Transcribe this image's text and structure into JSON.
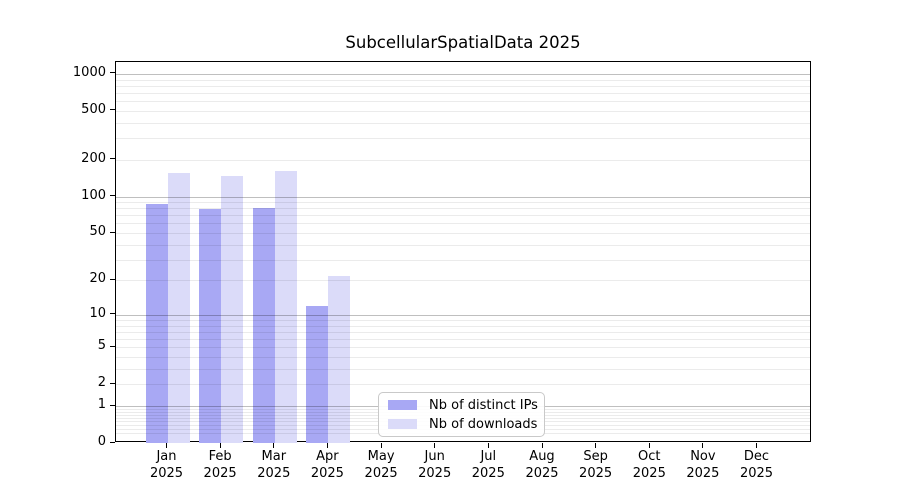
{
  "chart_data": {
    "type": "bar",
    "title": "SubcellularSpatialData 2025",
    "categories": [
      "Jan 2025",
      "Feb 2025",
      "Mar 2025",
      "Apr 2025",
      "May 2025",
      "Jun 2025",
      "Jul 2025",
      "Aug 2025",
      "Sep 2025",
      "Oct 2025",
      "Nov 2025",
      "Dec 2025"
    ],
    "x_tick_line1": [
      "Jan",
      "Feb",
      "Mar",
      "Apr",
      "May",
      "Jun",
      "Jul",
      "Aug",
      "Sep",
      "Oct",
      "Nov",
      "Dec"
    ],
    "x_tick_line2": "2025",
    "series": [
      {
        "name": "Nb of distinct IPs",
        "color": "#a8a8f4",
        "values": [
          87,
          79,
          80,
          12,
          0,
          0,
          0,
          0,
          0,
          0,
          0,
          0
        ]
      },
      {
        "name": "Nb of downloads",
        "color": "#dbdbf9",
        "values": [
          155,
          146,
          162,
          22,
          0,
          0,
          0,
          0,
          0,
          0,
          0,
          0
        ]
      }
    ],
    "y_scale": "log1p",
    "y_ticks": [
      0,
      1,
      2,
      5,
      10,
      20,
      50,
      100,
      200,
      500,
      1000
    ],
    "y_gridlines_major": [
      1,
      10,
      100,
      1000
    ],
    "y_gridlines_minor": [
      0.2,
      0.3,
      0.4,
      0.5,
      0.6,
      0.7,
      0.8,
      0.9,
      2,
      3,
      4,
      5,
      6,
      7,
      8,
      9,
      20,
      30,
      40,
      50,
      60,
      70,
      80,
      90,
      200,
      300,
      400,
      500,
      600,
      700,
      800,
      900
    ],
    "grid": true,
    "legend_position": "lower-center",
    "colors": {
      "bar_distinct_ips": "#a8a8f4",
      "bar_downloads": "#dbdbf9",
      "axis": "#000000",
      "grid_major": "#c0c0c0",
      "grid_minor": "#ebebeb"
    }
  }
}
